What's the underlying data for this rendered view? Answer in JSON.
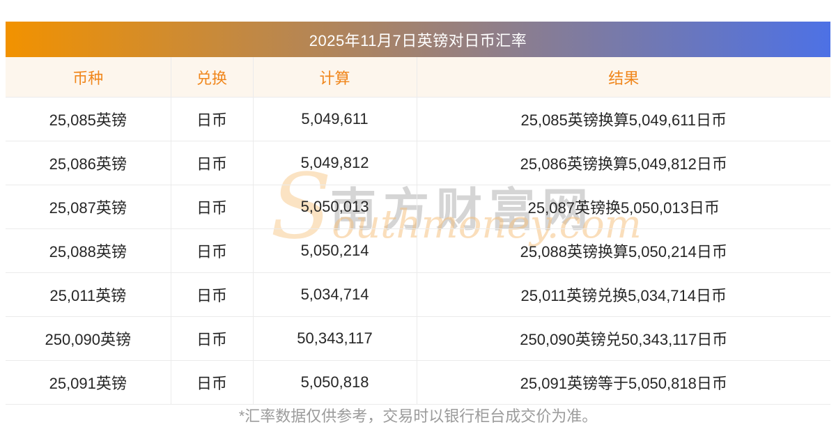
{
  "header": {
    "title": "2025年11月7日英镑对日币汇率"
  },
  "table": {
    "columns": [
      "币种",
      "兑换",
      "计算",
      "结果"
    ],
    "rows": [
      [
        "25,085英镑",
        "日币",
        "5,049,611",
        "25,085英镑换算5,049,611日币"
      ],
      [
        "25,086英镑",
        "日币",
        "5,049,812",
        "25,086英镑换算5,049,812日币"
      ],
      [
        "25,087英镑",
        "日币",
        "5,050,013",
        "25,087英镑换5,050,013日币"
      ],
      [
        "25,088英镑",
        "日币",
        "5,050,214",
        "25,088英镑换算5,050,214日币"
      ],
      [
        "25,011英镑",
        "日币",
        "5,034,714",
        "25,011英镑兑换5,034,714日币"
      ],
      [
        "250,090英镑",
        "日币",
        "50,343,117",
        "250,090英镑兑50,343,117日币"
      ],
      [
        "25,091英镑",
        "日币",
        "5,050,818",
        "25,091英镑等于5,050,818日币"
      ]
    ]
  },
  "watermark": {
    "cn": "南方财富网",
    "en": "Southmoney.com"
  },
  "footer": {
    "note": "*汇率数据仅供参考，交易时以银行柜台成交价为准。"
  },
  "theme": {
    "gradient_start": "#f29200",
    "gradient_end": "#4d71e5",
    "header_text_color": "#f0861b",
    "header_bg": "#fdf6ed",
    "border_color": "#ebebeb",
    "body_text_color": "#262626",
    "note_color": "#9b9b9b",
    "watermark_cn_color": "rgba(150,150,150,0.40)",
    "watermark_en_color": "rgba(245,189,120,0.50)",
    "watermark_s_color": "rgba(248,204,146,0.55)"
  }
}
